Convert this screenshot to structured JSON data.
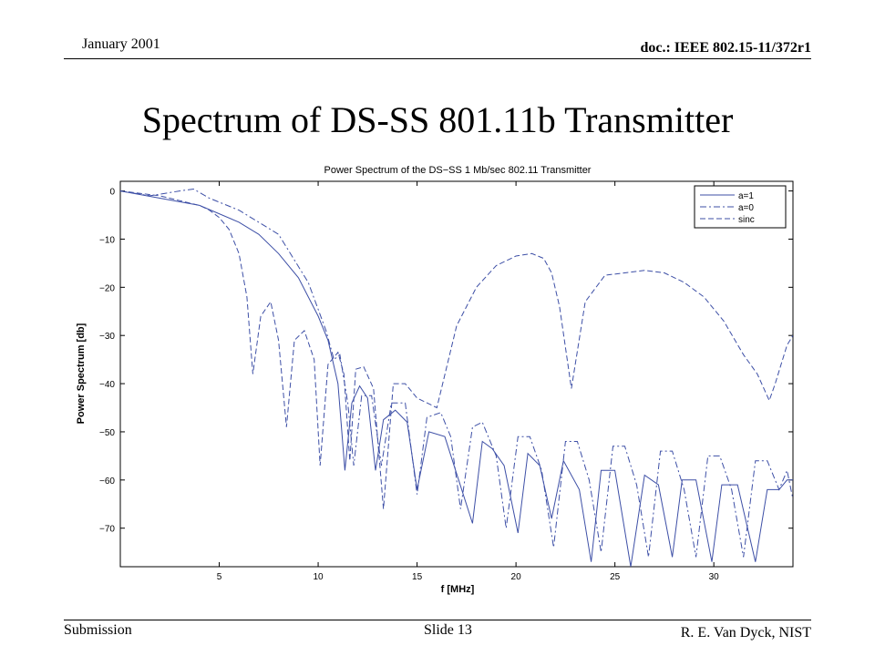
{
  "header": {
    "date": "January 2001",
    "doc": "doc.: IEEE 802.15-11/372r1"
  },
  "slide": {
    "title": "Spectrum of DS-SS 801.11b Transmitter"
  },
  "footer": {
    "submission": "Submission",
    "slide_number": "Slide 13",
    "author": "R. E. Van Dyck, NIST"
  },
  "colors": {
    "series": "#3d4fa6",
    "axis": "#000000",
    "background": "#ffffff"
  },
  "chart_data": {
    "type": "line",
    "title": "Power Spectrum of the DS−SS 1 Mb/sec 802.11 Transmitter",
    "xlabel": "f [MHz]",
    "ylabel": "Power Spectrum [db]",
    "xlim": [
      0,
      34
    ],
    "ylim": [
      -78,
      2
    ],
    "xticks": [
      5,
      10,
      15,
      20,
      25,
      30
    ],
    "xtick_labels": [
      "5",
      "10",
      "15",
      "20",
      "25",
      "30"
    ],
    "yticks": [
      0,
      -10,
      -20,
      -30,
      -40,
      -50,
      -60,
      -70
    ],
    "ytick_labels": [
      "0",
      "−10",
      "−20",
      "−30",
      "−40",
      "−50",
      "−60",
      "−70"
    ],
    "grid": false,
    "legend_position": "top-right",
    "series": [
      {
        "name": "a=1",
        "style": "solid",
        "x": [
          0,
          2,
          4,
          6,
          7,
          8,
          9,
          10,
          10.5,
          11,
          11.35,
          11.7,
          12.1,
          12.5,
          12.9,
          13.3,
          13.9,
          14.5,
          15,
          15.6,
          16.4,
          17.1,
          17.8,
          18.3,
          18.8,
          19.4,
          20.1,
          20.6,
          21.2,
          21.8,
          22.4,
          23.2,
          23.8,
          24.3,
          25,
          25.8,
          26.5,
          27.2,
          27.9,
          28.4,
          29.1,
          29.9,
          30.4,
          31.2,
          32.1,
          32.7,
          33.3,
          33.7,
          34
        ],
        "y": [
          0,
          -1.5,
          -3,
          -6.5,
          -9,
          -13,
          -18,
          -26,
          -31,
          -40,
          -58,
          -44,
          -40.5,
          -43,
          -58,
          -47.5,
          -45.5,
          -48,
          -62,
          -50,
          -51,
          -60,
          -69,
          -52,
          -53.5,
          -57,
          -71,
          -54.5,
          -57,
          -68,
          -56,
          -62,
          -77,
          -58,
          -58,
          -78,
          -59,
          -61,
          -76,
          -60,
          -60,
          -77,
          -61,
          -61,
          -77,
          -62,
          -62,
          -60,
          -60
        ]
      },
      {
        "name": "a=0",
        "style": "dashdot",
        "x": [
          0,
          1.5,
          3,
          3.7,
          4.5,
          6,
          8,
          9.5,
          10.4,
          10.8,
          11.1,
          11.5,
          11.8,
          12.2,
          12.7,
          13.2,
          13.7,
          14.4,
          15,
          15.5,
          16.2,
          16.7,
          17.2,
          17.8,
          18.3,
          19,
          19.5,
          20.1,
          20.7,
          21.3,
          21.9,
          22.5,
          23.1,
          23.7,
          24.3,
          24.9,
          25.5,
          26.1,
          26.7,
          27.3,
          27.9,
          28.5,
          29.1,
          29.7,
          30.3,
          30.9,
          31.5,
          32.1,
          32.7,
          33.3,
          33.7,
          34
        ],
        "y": [
          0,
          -1,
          0,
          0.4,
          -1.5,
          -4,
          -9,
          -19,
          -29,
          -35,
          -34,
          -44,
          -57,
          -42.5,
          -42.5,
          -57,
          -44,
          -44,
          -63,
          -47,
          -46,
          -51,
          -66,
          -49,
          -48,
          -55,
          -70,
          -51,
          -51,
          -58,
          -74,
          -52,
          -52,
          -60,
          -75,
          -53,
          -53,
          -61,
          -76,
          -54,
          -54,
          -62,
          -76,
          -55,
          -55,
          -62,
          -76,
          -56,
          -56,
          -62,
          -58,
          -64
        ]
      },
      {
        "name": "sinc",
        "style": "dashed",
        "x": [
          0,
          1,
          2,
          3,
          4,
          4.5,
          5,
          5.5,
          6,
          6.4,
          6.7,
          7.1,
          7.6,
          8,
          8.4,
          8.8,
          9.3,
          9.8,
          10.1,
          10.5,
          11,
          11.3,
          11.6,
          11.9,
          12.3,
          12.8,
          13.3,
          13.8,
          14.4,
          15,
          16,
          17,
          18,
          19,
          20,
          20.8,
          21.4,
          21.8,
          22.2,
          22.8,
          23.5,
          24.5,
          25.5,
          26.5,
          27.5,
          28.5,
          29.5,
          30.5,
          31.5,
          32.2,
          32.8,
          33.1,
          33.4,
          33.7,
          34
        ],
        "y": [
          0,
          -0.5,
          -1,
          -2,
          -3,
          -4,
          -5.5,
          -8,
          -13,
          -22,
          -38,
          -26,
          -23,
          -31,
          -49,
          -31,
          -29,
          -35,
          -57,
          -36,
          -33.5,
          -38,
          -56,
          -37,
          -36.5,
          -41,
          -66,
          -40,
          -40,
          -43,
          -45,
          -28,
          -20,
          -15.5,
          -13.5,
          -13,
          -14,
          -17,
          -24,
          -41,
          -23,
          -17.5,
          -17,
          -16.5,
          -17,
          -19,
          -22,
          -27,
          -34,
          -38,
          -43.5,
          -40,
          -36,
          -32,
          -30
        ]
      }
    ]
  }
}
